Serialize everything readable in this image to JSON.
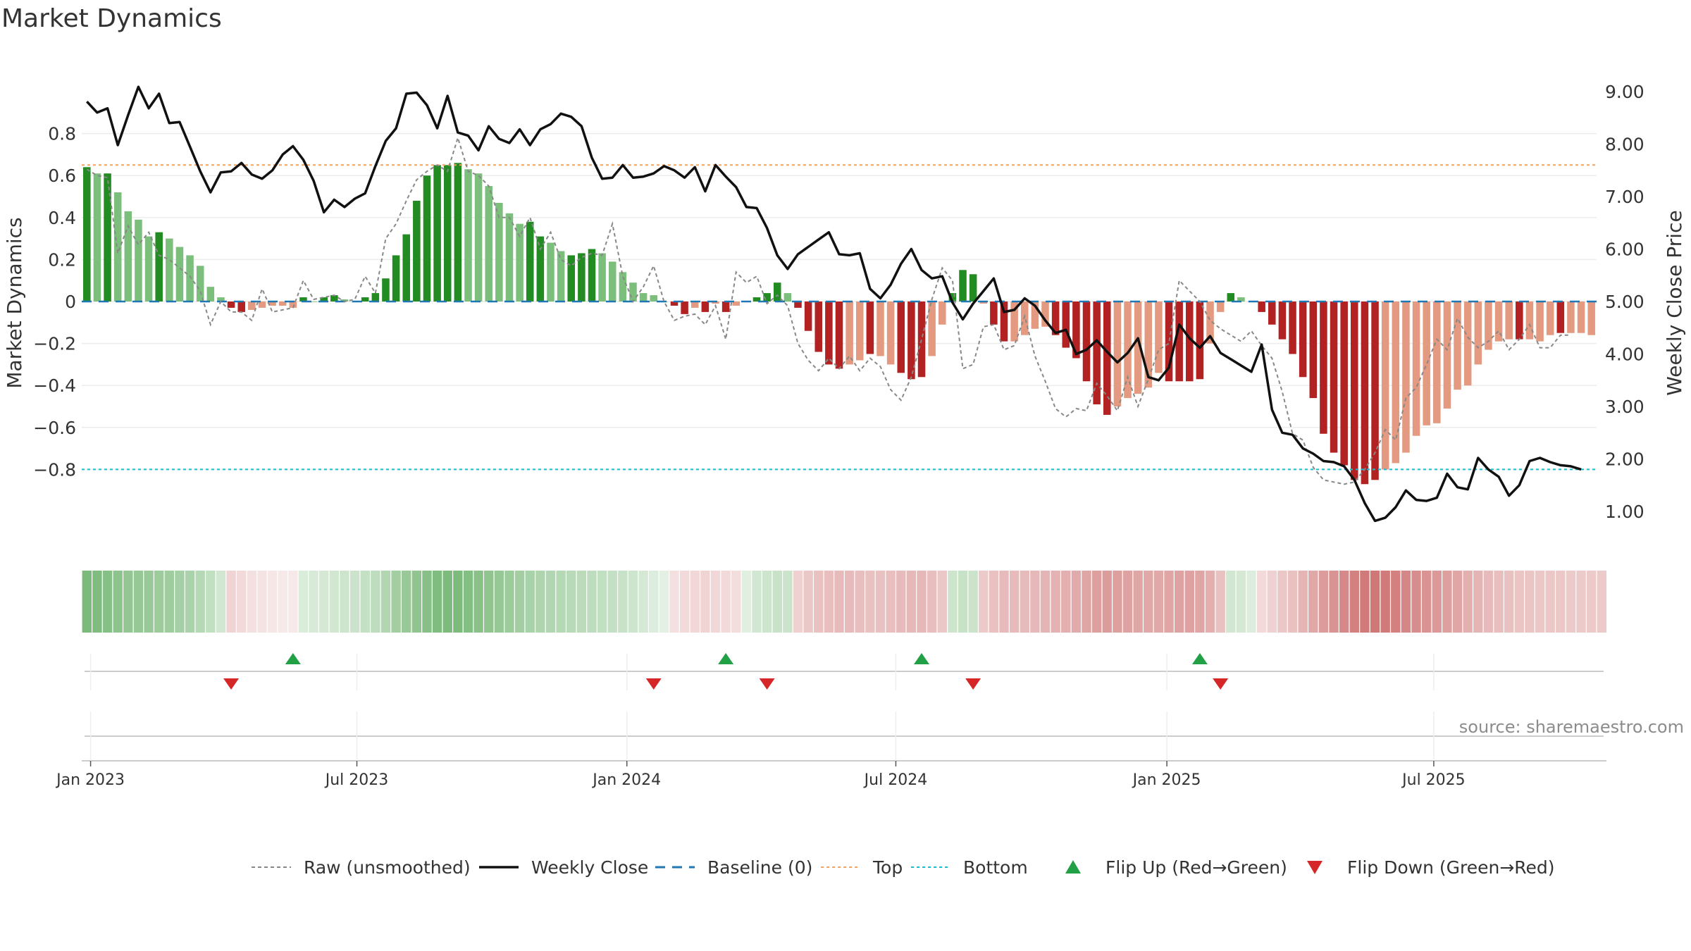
{
  "title": "Market Dynamics",
  "source": "source: sharemaestro.com",
  "colors": {
    "strong_up": "#228b22",
    "weak_up": "#7cbf7c",
    "strong_down": "#b22222",
    "weak_down": "#e39a80",
    "close": "#111111",
    "raw": "#888888",
    "baseline": "#1f77b4",
    "top": "#f4a460",
    "bottom": "#17becf",
    "flip_up": "#22a045",
    "flip_down": "#d62728"
  },
  "chart_data": {
    "type": "bar",
    "title": "Market Dynamics",
    "ylabel_left": "Market Dynamics",
    "ylabel_right": "Weekly Close Price",
    "ylim_left": [
      -0.93,
      0.95
    ],
    "ylim_right": [
      0.0,
      9.8
    ],
    "yticks_left": [
      "0.8",
      "0.6",
      "0.4",
      "0.2",
      "0",
      "−0.2",
      "−0.4",
      "−0.6",
      "−0.8"
    ],
    "yticks_right": [
      "9.00",
      "8.00",
      "7.00",
      "6.00",
      "5.00",
      "4.00",
      "3.00",
      "2.00",
      "1.00"
    ],
    "x_ticks": [
      "Jan 2023",
      "Jul 2023",
      "Jan 2024",
      "Jul 2024",
      "Jan 2025",
      "Jul 2025"
    ],
    "x_start": "2022-12-26",
    "x_interval": "weekly",
    "top_level": 0.65,
    "bottom_level": -0.8,
    "baseline": 0,
    "grid": true,
    "bar_values": [
      0.64,
      0.61,
      0.61,
      0.52,
      0.43,
      0.39,
      0.31,
      0.33,
      0.3,
      0.26,
      0.22,
      0.17,
      0.07,
      0.02,
      -0.03,
      -0.05,
      -0.04,
      -0.03,
      -0.02,
      -0.02,
      -0.03,
      0.02,
      0.0,
      0.02,
      0.03,
      0.01,
      0.0,
      0.02,
      0.04,
      0.11,
      0.22,
      0.32,
      0.48,
      0.6,
      0.65,
      0.65,
      0.66,
      0.63,
      0.61,
      0.55,
      0.47,
      0.42,
      0.37,
      0.38,
      0.31,
      0.28,
      0.24,
      0.22,
      0.23,
      0.25,
      0.23,
      0.19,
      0.14,
      0.09,
      0.04,
      0.03,
      0.0,
      -0.02,
      -0.06,
      -0.03,
      -0.05,
      -0.01,
      -0.05,
      -0.02,
      0.0,
      0.02,
      0.04,
      0.09,
      0.04,
      -0.03,
      -0.14,
      -0.24,
      -0.3,
      -0.32,
      -0.3,
      -0.28,
      -0.25,
      -0.26,
      -0.3,
      -0.34,
      -0.37,
      -0.36,
      -0.26,
      -0.11,
      0.04,
      0.15,
      0.13,
      -0.01,
      -0.11,
      -0.19,
      -0.19,
      -0.16,
      -0.13,
      -0.12,
      -0.16,
      -0.22,
      -0.27,
      -0.38,
      -0.49,
      -0.54,
      -0.5,
      -0.46,
      -0.44,
      -0.41,
      -0.34,
      -0.38,
      -0.38,
      -0.38,
      -0.37,
      -0.2,
      -0.05,
      0.04,
      0.02,
      0.0,
      -0.05,
      -0.11,
      -0.18,
      -0.25,
      -0.36,
      -0.46,
      -0.63,
      -0.72,
      -0.78,
      -0.85,
      -0.87,
      -0.85,
      -0.8,
      -0.77,
      -0.72,
      -0.64,
      -0.59,
      -0.58,
      -0.51,
      -0.42,
      -0.4,
      -0.3,
      -0.23,
      -0.19,
      -0.18,
      -0.18,
      -0.18,
      -0.19,
      -0.16,
      -0.15,
      -0.15,
      -0.15,
      -0.16
    ],
    "bar_strength": [
      "strong",
      "weak",
      "strong",
      "weak",
      "weak",
      "weak",
      "weak",
      "strong",
      "weak",
      "weak",
      "weak",
      "weak",
      "weak",
      "weak",
      "strong",
      "strong",
      "weak",
      "weak",
      "weak",
      "weak",
      "weak",
      "strong",
      "weak",
      "strong",
      "strong",
      "weak",
      "weak",
      "strong",
      "strong",
      "strong",
      "strong",
      "strong",
      "strong",
      "strong",
      "strong",
      "strong",
      "strong",
      "weak",
      "weak",
      "weak",
      "weak",
      "weak",
      "weak",
      "strong",
      "strong",
      "weak",
      "weak",
      "strong",
      "strong",
      "strong",
      "weak",
      "weak",
      "weak",
      "weak",
      "weak",
      "weak",
      "weak",
      "strong",
      "strong",
      "weak",
      "strong",
      "weak",
      "strong",
      "weak",
      "weak",
      "strong",
      "strong",
      "strong",
      "weak",
      "strong",
      "strong",
      "strong",
      "strong",
      "strong",
      "weak",
      "weak",
      "strong",
      "weak",
      "weak",
      "strong",
      "strong",
      "strong",
      "weak",
      "weak",
      "strong",
      "strong",
      "strong",
      "weak",
      "strong",
      "strong",
      "weak",
      "weak",
      "weak",
      "weak",
      "strong",
      "strong",
      "strong",
      "strong",
      "strong",
      "strong",
      "weak",
      "weak",
      "weak",
      "weak",
      "weak",
      "strong",
      "strong",
      "strong",
      "strong",
      "weak",
      "weak",
      "strong",
      "weak",
      "weak",
      "strong",
      "strong",
      "strong",
      "strong",
      "strong",
      "strong",
      "strong",
      "strong",
      "strong",
      "strong",
      "strong",
      "strong",
      "weak",
      "weak",
      "weak",
      "weak",
      "weak",
      "weak",
      "weak",
      "weak",
      "weak",
      "weak",
      "weak",
      "weak",
      "weak",
      "strong",
      "weak",
      "weak",
      "weak",
      "strong",
      "weak",
      "weak",
      "weak",
      "weak",
      "strong"
    ],
    "raw_values": [
      0.63,
      0.6,
      0.59,
      0.23,
      0.36,
      0.27,
      0.33,
      0.22,
      0.2,
      0.16,
      0.12,
      0.05,
      -0.11,
      0.0,
      -0.05,
      -0.05,
      -0.09,
      0.06,
      -0.05,
      -0.04,
      -0.03,
      0.1,
      0.01,
      0.02,
      0.03,
      0.0,
      0.01,
      0.12,
      0.04,
      0.3,
      0.37,
      0.48,
      0.58,
      0.62,
      0.65,
      0.62,
      0.78,
      0.62,
      0.6,
      0.55,
      0.4,
      0.4,
      0.31,
      0.4,
      0.25,
      0.33,
      0.2,
      0.17,
      0.21,
      0.23,
      0.22,
      0.37,
      0.12,
      0.0,
      0.07,
      0.17,
      0.0,
      -0.09,
      -0.07,
      -0.06,
      -0.11,
      -0.02,
      -0.18,
      0.14,
      0.09,
      0.12,
      -0.01,
      0.03,
      -0.02,
      -0.2,
      -0.28,
      -0.33,
      -0.27,
      -0.32,
      -0.26,
      -0.33,
      -0.27,
      -0.31,
      -0.42,
      -0.47,
      -0.36,
      -0.18,
      0.01,
      0.16,
      0.1,
      -0.32,
      -0.3,
      -0.12,
      -0.11,
      -0.23,
      -0.21,
      -0.07,
      -0.26,
      -0.38,
      -0.51,
      -0.55,
      -0.51,
      -0.52,
      -0.39,
      -0.45,
      -0.52,
      -0.36,
      -0.5,
      -0.37,
      -0.23,
      -0.2,
      0.1,
      0.05,
      0.0,
      -0.09,
      -0.13,
      -0.16,
      -0.19,
      -0.14,
      -0.21,
      -0.27,
      -0.43,
      -0.63,
      -0.66,
      -0.79,
      -0.85,
      -0.86,
      -0.87,
      -0.86,
      -0.8,
      -0.72,
      -0.61,
      -0.66,
      -0.46,
      -0.41,
      -0.3,
      -0.18,
      -0.23,
      -0.08,
      -0.17,
      -0.22,
      -0.19,
      -0.14,
      -0.23,
      -0.18,
      -0.11,
      -0.22,
      -0.22,
      -0.16,
      -0.16
    ],
    "close_values": [
      8.81,
      8.6,
      8.68,
      7.98,
      8.55,
      9.09,
      8.68,
      8.96,
      8.4,
      8.42,
      7.95,
      7.48,
      7.08,
      7.46,
      7.48,
      7.64,
      7.42,
      7.34,
      7.5,
      7.8,
      7.96,
      7.7,
      7.3,
      6.7,
      6.94,
      6.8,
      6.96,
      7.06,
      7.58,
      8.06,
      8.3,
      8.96,
      8.98,
      8.74,
      8.3,
      8.92,
      8.22,
      8.16,
      7.88,
      8.34,
      8.1,
      8.02,
      8.28,
      7.98,
      8.28,
      8.38,
      8.58,
      8.52,
      8.34,
      7.74,
      7.34,
      7.36,
      7.6,
      7.36,
      7.38,
      7.44,
      7.58,
      7.5,
      7.36,
      7.56,
      7.1,
      7.6,
      7.38,
      7.18,
      6.8,
      6.78,
      6.4,
      5.88,
      5.62,
      5.9,
      6.04,
      6.18,
      6.32,
      5.9,
      5.88,
      5.92,
      5.24,
      5.06,
      5.32,
      5.72,
      6.0,
      5.6,
      5.44,
      5.48,
      4.98,
      4.66,
      4.96,
      5.2,
      5.44,
      4.8,
      4.84,
      5.06,
      4.92,
      4.64,
      4.4,
      4.46,
      4.0,
      4.08,
      4.26,
      4.04,
      3.84,
      4.02,
      4.3,
      3.56,
      3.5,
      3.74,
      4.56,
      4.3,
      4.12,
      4.34,
      4.02,
      3.9,
      3.78,
      3.66,
      4.18,
      2.94,
      2.5,
      2.46,
      2.2,
      2.1,
      1.96,
      1.94,
      1.86,
      1.6,
      1.16,
      0.82,
      0.88,
      1.08,
      1.4,
      1.22,
      1.2,
      1.26,
      1.72,
      1.46,
      1.42,
      2.02,
      1.8,
      1.66,
      1.3,
      1.5,
      1.96,
      2.02,
      1.94,
      1.88,
      1.86,
      1.8
    ],
    "heat_strength": [
      0.85,
      0.82,
      0.78,
      0.74,
      0.7,
      0.68,
      0.66,
      0.64,
      0.62,
      0.58,
      0.54,
      0.48,
      0.4,
      0.3,
      0.28,
      0.24,
      0.2,
      0.18,
      0.16,
      0.14,
      0.14,
      0.24,
      0.26,
      0.28,
      0.3,
      0.32,
      0.34,
      0.38,
      0.42,
      0.5,
      0.6,
      0.66,
      0.72,
      0.78,
      0.82,
      0.84,
      0.84,
      0.8,
      0.76,
      0.72,
      0.68,
      0.64,
      0.6,
      0.56,
      0.52,
      0.5,
      0.48,
      0.46,
      0.44,
      0.42,
      0.4,
      0.38,
      0.36,
      0.32,
      0.28,
      0.22,
      0.18,
      0.2,
      0.24,
      0.26,
      0.28,
      0.26,
      0.24,
      0.22,
      0.2,
      0.3,
      0.32,
      0.36,
      0.34,
      0.3,
      0.36,
      0.4,
      0.42,
      0.44,
      0.44,
      0.42,
      0.4,
      0.4,
      0.42,
      0.44,
      0.46,
      0.46,
      0.42,
      0.36,
      0.32,
      0.36,
      0.34,
      0.34,
      0.4,
      0.44,
      0.44,
      0.44,
      0.46,
      0.48,
      0.5,
      0.52,
      0.54,
      0.58,
      0.62,
      0.64,
      0.62,
      0.6,
      0.58,
      0.56,
      0.56,
      0.58,
      0.6,
      0.6,
      0.58,
      0.52,
      0.4,
      0.3,
      0.28,
      0.22,
      0.24,
      0.3,
      0.36,
      0.4,
      0.48,
      0.56,
      0.64,
      0.7,
      0.76,
      0.82,
      0.86,
      0.88,
      0.86,
      0.82,
      0.78,
      0.74,
      0.7,
      0.66,
      0.62,
      0.58,
      0.52,
      0.48,
      0.44,
      0.42,
      0.4,
      0.38,
      0.38,
      0.36,
      0.36,
      0.36,
      0.34,
      0.34,
      0.34,
      0.34
    ],
    "flip_up_weeks": [
      20,
      62,
      81,
      108
    ],
    "flip_down_weeks": [
      14,
      55,
      66,
      86,
      110
    ],
    "legend": [
      {
        "label": "Raw (unsmoothed)",
        "kind": "dash-gray"
      },
      {
        "label": "Weekly Close",
        "kind": "solid-black"
      },
      {
        "label": "Baseline (0)",
        "kind": "dash-blue"
      },
      {
        "label": "Top",
        "kind": "dot-orange"
      },
      {
        "label": "Bottom",
        "kind": "dot-cyan"
      },
      {
        "label": "Flip Up (Red→Green)",
        "kind": "tri-up"
      },
      {
        "label": "Flip Down (Green→Red)",
        "kind": "tri-down"
      }
    ],
    "legend_position": "bottom"
  }
}
